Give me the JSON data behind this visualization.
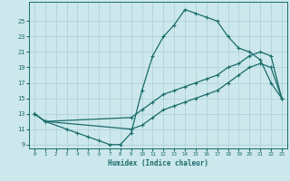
{
  "xlabel": "Humidex (Indice chaleur)",
  "bg_color": "#cce8ec",
  "grid_color": "#aacfd4",
  "line_color": "#1a6b6b",
  "xlim": [
    -0.5,
    23.5
  ],
  "ylim": [
    8.5,
    27.5
  ],
  "yticks": [
    9,
    11,
    13,
    15,
    17,
    19,
    21,
    23,
    25
  ],
  "xticks": [
    0,
    1,
    2,
    3,
    4,
    5,
    6,
    7,
    8,
    9,
    10,
    11,
    12,
    13,
    14,
    15,
    16,
    17,
    18,
    19,
    20,
    21,
    22,
    23
  ],
  "line1_x": [
    0,
    1,
    3,
    4,
    5,
    6,
    7,
    8,
    9,
    10,
    11,
    12,
    13,
    14,
    15,
    16,
    17,
    18,
    19,
    20,
    21,
    22,
    23
  ],
  "line1_y": [
    13,
    12,
    11,
    10.5,
    10,
    9.5,
    9,
    9,
    10.5,
    16,
    20.5,
    23,
    24.5,
    26.5,
    26,
    25.5,
    25,
    23,
    21.5,
    21,
    20,
    17,
    15
  ],
  "line2_x": [
    0,
    1,
    9,
    10,
    11,
    12,
    13,
    14,
    15,
    16,
    17,
    18,
    19,
    20,
    21,
    22,
    23
  ],
  "line2_y": [
    13,
    12,
    12.5,
    13.5,
    14.5,
    15.5,
    16,
    16.5,
    17,
    17.5,
    18,
    19,
    19.5,
    20.5,
    21,
    20.5,
    15
  ],
  "line3_x": [
    0,
    1,
    9,
    10,
    11,
    12,
    13,
    14,
    15,
    16,
    17,
    18,
    19,
    20,
    21,
    22,
    23
  ],
  "line3_y": [
    13,
    12,
    11,
    11.5,
    12.5,
    13.5,
    14,
    14.5,
    15,
    15.5,
    16,
    17,
    18,
    19,
    19.5,
    19,
    15
  ]
}
